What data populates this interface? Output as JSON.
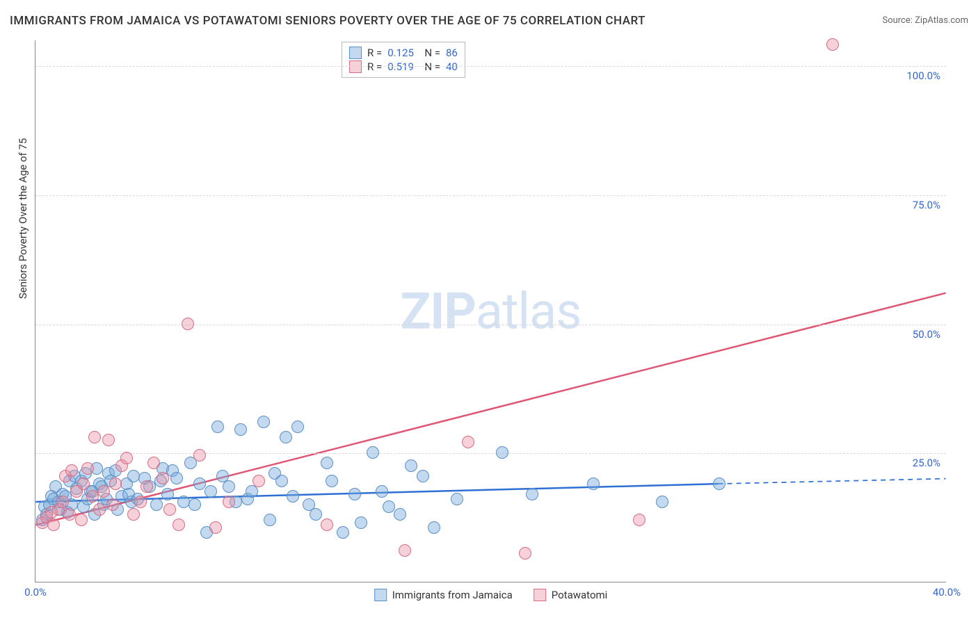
{
  "title": "IMMIGRANTS FROM JAMAICA VS POTAWATOMI SENIORS POVERTY OVER THE AGE OF 75 CORRELATION CHART",
  "source_label": "Source: ",
  "source_name": "ZipAtlas.com",
  "yaxis_label": "Seniors Poverty Over the Age of 75",
  "watermark_zip": "ZIP",
  "watermark_atlas": "atlas",
  "chart": {
    "type": "scatter",
    "background_color": "#ffffff",
    "grid_color": "#d8d8d8",
    "axis_color": "#888888",
    "text_color": "#333333",
    "tick_label_color": "#3366cc",
    "xlim": [
      0,
      40
    ],
    "ylim": [
      0,
      105
    ],
    "xticks": [
      {
        "value": 0,
        "label": "0.0%"
      },
      {
        "value": 40,
        "label": "40.0%"
      }
    ],
    "yticks": [
      {
        "value": 25,
        "label": "25.0%"
      },
      {
        "value": 50,
        "label": "50.0%"
      },
      {
        "value": 75,
        "label": "75.0%"
      },
      {
        "value": 100,
        "label": "100.0%"
      }
    ],
    "marker_radius": 9,
    "marker_border_width": 1.5,
    "line_width": 2.5,
    "series": [
      {
        "name": "Immigrants from Jamaica",
        "fill": "rgba(120,170,220,0.45)",
        "stroke": "#5b8fc7",
        "line_color": "#2e6fd6",
        "r_value": "0.125",
        "n_value": "86",
        "regression": {
          "x1": 0,
          "y1": 15.5,
          "x2": 30,
          "y2": 19,
          "dashed_x2": 40,
          "dashed_y2": 20
        },
        "points": [
          [
            0.3,
            12
          ],
          [
            0.4,
            14.5
          ],
          [
            0.5,
            13
          ],
          [
            0.6,
            15
          ],
          [
            0.7,
            16.5
          ],
          [
            0.8,
            16
          ],
          [
            0.9,
            18.5
          ],
          [
            1.0,
            15.5
          ],
          [
            1.1,
            14
          ],
          [
            1.2,
            17
          ],
          [
            1.3,
            16.5
          ],
          [
            1.4,
            13.5
          ],
          [
            1.5,
            19.5
          ],
          [
            1.6,
            15
          ],
          [
            1.7,
            20.5
          ],
          [
            1.8,
            18
          ],
          [
            2.0,
            19.5
          ],
          [
            2.1,
            14.5
          ],
          [
            2.2,
            21
          ],
          [
            2.3,
            16
          ],
          [
            2.4,
            17.5
          ],
          [
            2.5,
            17.5
          ],
          [
            2.6,
            13
          ],
          [
            2.7,
            22
          ],
          [
            2.8,
            19
          ],
          [
            2.9,
            18.5
          ],
          [
            3.0,
            15
          ],
          [
            3.1,
            16
          ],
          [
            3.2,
            21
          ],
          [
            3.3,
            19.5
          ],
          [
            3.5,
            21.5
          ],
          [
            3.6,
            14
          ],
          [
            3.8,
            16.5
          ],
          [
            4.0,
            19
          ],
          [
            4.1,
            17
          ],
          [
            4.2,
            15.5
          ],
          [
            4.3,
            20.5
          ],
          [
            4.5,
            16
          ],
          [
            4.8,
            20
          ],
          [
            5.0,
            18.5
          ],
          [
            5.3,
            15
          ],
          [
            5.5,
            19.5
          ],
          [
            5.6,
            22
          ],
          [
            5.8,
            17
          ],
          [
            6.0,
            21.5
          ],
          [
            6.2,
            20
          ],
          [
            6.5,
            15.5
          ],
          [
            6.8,
            23
          ],
          [
            7.0,
            15
          ],
          [
            7.2,
            19
          ],
          [
            7.5,
            9.5
          ],
          [
            7.7,
            17.5
          ],
          [
            8.0,
            30
          ],
          [
            8.2,
            20.5
          ],
          [
            8.5,
            18.5
          ],
          [
            8.8,
            15.5
          ],
          [
            9.0,
            29.5
          ],
          [
            9.3,
            16
          ],
          [
            9.5,
            17.5
          ],
          [
            10.0,
            31
          ],
          [
            10.3,
            12
          ],
          [
            10.5,
            21
          ],
          [
            10.8,
            19.5
          ],
          [
            11.0,
            28
          ],
          [
            11.3,
            16.5
          ],
          [
            11.5,
            30
          ],
          [
            12.0,
            15
          ],
          [
            12.3,
            13
          ],
          [
            12.8,
            23
          ],
          [
            13.0,
            19.5
          ],
          [
            13.5,
            9.5
          ],
          [
            14.0,
            17
          ],
          [
            14.3,
            11.5
          ],
          [
            14.8,
            25
          ],
          [
            15.2,
            17.5
          ],
          [
            15.5,
            14.5
          ],
          [
            16.0,
            13
          ],
          [
            16.5,
            22.5
          ],
          [
            17.0,
            20.5
          ],
          [
            17.5,
            10.5
          ],
          [
            18.5,
            16
          ],
          [
            20.5,
            25
          ],
          [
            21.8,
            17
          ],
          [
            24.5,
            19
          ],
          [
            27.5,
            15.5
          ],
          [
            30.0,
            19
          ]
        ]
      },
      {
        "name": "Potawatomi",
        "fill": "rgba(235,140,160,0.40)",
        "stroke": "#d76b85",
        "line_color": "#e05574",
        "r_value": "0.519",
        "n_value": "40",
        "regression": {
          "x1": 0,
          "y1": 11,
          "x2": 40,
          "y2": 56,
          "dashed_x2": 40,
          "dashed_y2": 56
        },
        "points": [
          [
            0.3,
            11.5
          ],
          [
            0.5,
            12.5
          ],
          [
            0.7,
            13.5
          ],
          [
            0.8,
            11
          ],
          [
            1.0,
            14
          ],
          [
            1.2,
            15.5
          ],
          [
            1.3,
            20.5
          ],
          [
            1.5,
            13
          ],
          [
            1.6,
            21.5
          ],
          [
            1.8,
            17.5
          ],
          [
            2.0,
            12
          ],
          [
            2.1,
            19
          ],
          [
            2.3,
            22
          ],
          [
            2.5,
            16.5
          ],
          [
            2.6,
            28
          ],
          [
            2.8,
            14
          ],
          [
            3.0,
            17.5
          ],
          [
            3.2,
            27.5
          ],
          [
            3.4,
            15
          ],
          [
            3.5,
            19
          ],
          [
            3.8,
            22.5
          ],
          [
            4.0,
            24
          ],
          [
            4.3,
            13
          ],
          [
            4.6,
            15.5
          ],
          [
            4.9,
            18.5
          ],
          [
            5.2,
            23
          ],
          [
            5.6,
            20
          ],
          [
            5.9,
            14
          ],
          [
            6.3,
            11
          ],
          [
            6.7,
            50
          ],
          [
            7.2,
            24.5
          ],
          [
            7.9,
            10.5
          ],
          [
            8.5,
            15.5
          ],
          [
            9.8,
            19.5
          ],
          [
            12.8,
            11
          ],
          [
            16.2,
            6
          ],
          [
            19.0,
            27
          ],
          [
            21.5,
            5.5
          ],
          [
            26.5,
            12
          ],
          [
            35.0,
            104
          ]
        ]
      }
    ],
    "legend_bottom": [
      {
        "label": "Immigrants from Jamaica",
        "series_idx": 0
      },
      {
        "label": "Potawatomi",
        "series_idx": 1
      }
    ]
  }
}
